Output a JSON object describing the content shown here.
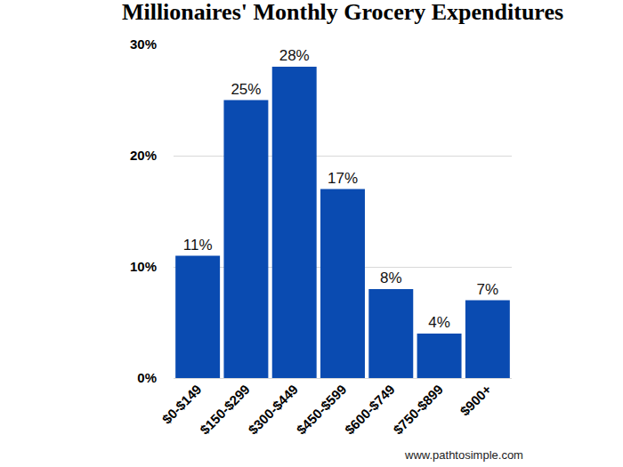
{
  "chart_data": {
    "type": "bar",
    "title": "Millionaires' Monthly Grocery Expenditures",
    "categories": [
      "$0-$149",
      "$150-$299",
      "$300-$449",
      "$450-$599",
      "$600-$749",
      "$750-$899",
      "$900+"
    ],
    "values": [
      11,
      25,
      28,
      17,
      8,
      4,
      7
    ],
    "value_labels": [
      "11%",
      "25%",
      "28%",
      "17%",
      "8%",
      "4%",
      "7%"
    ],
    "color": "#0a4bb1",
    "ylim": [
      0,
      30
    ],
    "yticks": [
      {
        "value": 0,
        "label": "0%"
      },
      {
        "value": 10,
        "label": "10%"
      },
      {
        "value": 20,
        "label": "20%"
      },
      {
        "value": 30,
        "label": "30%"
      }
    ],
    "grid": true,
    "data_labels": true,
    "annotations": [
      "www.pathtosimple.com"
    ]
  }
}
